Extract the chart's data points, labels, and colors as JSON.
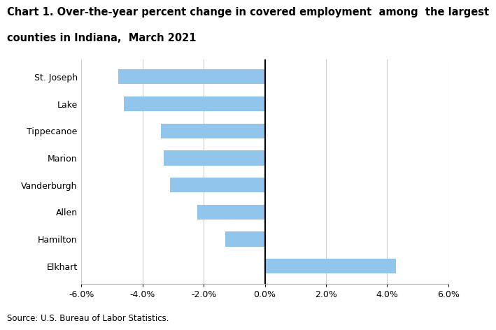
{
  "categories": [
    "St. Joseph",
    "Lake",
    "Tippecanoe",
    "Marion",
    "Vanderburgh",
    "Allen",
    "Hamilton",
    "Elkhart"
  ],
  "values": [
    -4.8,
    -4.6,
    -3.4,
    -3.3,
    -3.1,
    -2.2,
    -1.3,
    4.3
  ],
  "bar_color": "#92C5EC",
  "title_line1": "Chart 1. Over-the-year percent change in covered employment  among  the largest",
  "title_line2": "counties in Indiana,  March 2021",
  "xlim": [
    -6.0,
    6.0
  ],
  "xticks": [
    -6.0,
    -4.0,
    -2.0,
    0.0,
    2.0,
    4.0,
    6.0
  ],
  "xtick_labels": [
    "-6.0%",
    "-4.0%",
    "-2.0%",
    "0.0%",
    "2.0%",
    "4.0%",
    "6.0%"
  ],
  "source_text": "Source: U.S. Bureau of Labor Statistics.",
  "title_fontsize": 10.5,
  "tick_fontsize": 9,
  "source_fontsize": 8.5,
  "background_color": "#ffffff",
  "grid_color": "#cccccc",
  "bar_height": 0.55
}
